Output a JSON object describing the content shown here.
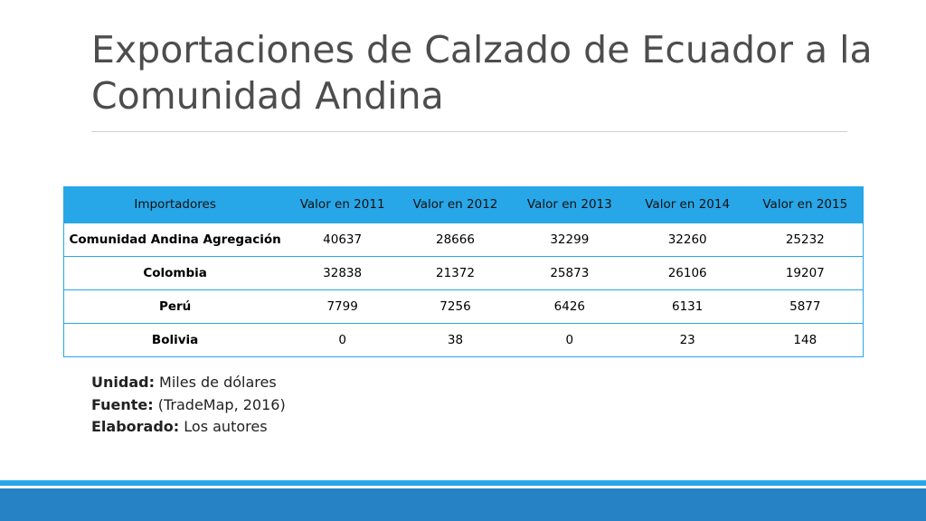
{
  "title": "Exportaciones de Calzado de Ecuador a la Comunidad Andina",
  "table": {
    "headers": [
      "Importadores",
      "Valor en 2011",
      "Valor en 2012",
      "Valor en 2013",
      "Valor en 2014",
      "Valor en 2015"
    ],
    "rows": [
      [
        "Comunidad Andina Agregación",
        "40637",
        "28666",
        "32299",
        "32260",
        "25232"
      ],
      [
        "Colombia",
        "32838",
        "21372",
        "25873",
        "26106",
        "19207"
      ],
      [
        "Perú",
        "7799",
        "7256",
        "6426",
        "6131",
        "5877"
      ],
      [
        "Bolivia",
        "0",
        "38",
        "0",
        "23",
        "148"
      ]
    ]
  },
  "notes": [
    {
      "label": "Unidad:",
      "value": " Miles de dólares"
    },
    {
      "label": "Fuente:",
      "value": " (TradeMap, 2016)"
    },
    {
      "label": "Elaborado:",
      "value": " Los autores"
    }
  ],
  "colors": {
    "header_fill": "#27a7e8",
    "table_border": "#27a7e8",
    "footer_band": "#2682c4",
    "title_text": "#4d4d4d"
  }
}
